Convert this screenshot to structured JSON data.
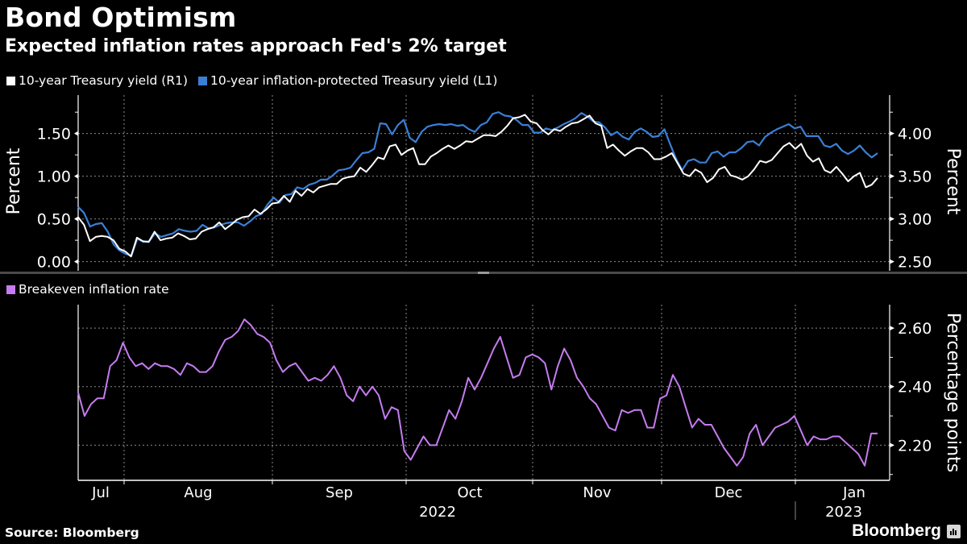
{
  "header": {
    "title": "Bond Optimism",
    "subtitle": "Expected inflation rates approach Fed's 2% target"
  },
  "footer": {
    "source": "Source: Bloomberg",
    "brand": "Bloomberg"
  },
  "colors": {
    "background": "#000000",
    "treasury": "#ffffff",
    "tips": "#3a7fd5",
    "breakeven": "#c57cf0",
    "grid": "#8a8a8a"
  },
  "chart_data": [
    {
      "type": "line",
      "panel": "top",
      "legend": [
        {
          "name": "10-year Treasury yield (R1)",
          "color": "#ffffff"
        },
        {
          "name": "10-year inflation-protected Treasury yield (L1)",
          "color": "#3a7fd5"
        }
      ],
      "left_axis": {
        "label": "Percent",
        "ticks": [
          "0.00",
          "0.50",
          "1.00",
          "1.50"
        ],
        "ylim": [
          -0.07,
          1.95
        ]
      },
      "right_axis": {
        "label": "Percent",
        "ticks": [
          "2.50",
          "3.00",
          "3.50",
          "4.00"
        ],
        "ylim": [
          2.43,
          4.45
        ]
      },
      "x_labels": [
        "Jul",
        "Aug",
        "Sep",
        "Oct",
        "Nov",
        "Dec",
        "Jan"
      ],
      "year_labels": [
        "2022",
        "2023"
      ],
      "grid": true,
      "series": [
        {
          "name": "10-year Treasury yield (R1)",
          "axis": "right",
          "values": [
            3.02,
            2.93,
            2.74,
            2.79,
            2.8,
            2.79,
            2.75,
            2.65,
            2.62,
            2.56,
            2.78,
            2.74,
            2.73,
            2.85,
            2.75,
            2.77,
            2.78,
            2.83,
            2.8,
            2.76,
            2.77,
            2.85,
            2.88,
            2.9,
            2.96,
            2.88,
            2.93,
            2.99,
            3.02,
            3.03,
            3.11,
            3.06,
            3.11,
            3.18,
            3.19,
            3.27,
            3.2,
            3.33,
            3.27,
            3.35,
            3.31,
            3.37,
            3.39,
            3.41,
            3.41,
            3.47,
            3.49,
            3.5,
            3.6,
            3.55,
            3.63,
            3.72,
            3.7,
            3.85,
            3.87,
            3.75,
            3.8,
            3.83,
            3.64,
            3.64,
            3.73,
            3.77,
            3.82,
            3.86,
            3.82,
            3.86,
            3.91,
            3.9,
            3.94,
            3.98,
            3.98,
            3.97,
            4.02,
            4.09,
            4.18,
            4.19,
            4.22,
            4.14,
            4.12,
            4.04,
            3.99,
            4.05,
            4.03,
            4.08,
            4.12,
            4.13,
            4.17,
            4.21,
            4.12,
            4.09,
            3.83,
            3.87,
            3.8,
            3.74,
            3.79,
            3.83,
            3.83,
            3.78,
            3.7,
            3.7,
            3.73,
            3.77,
            3.65,
            3.53,
            3.5,
            3.58,
            3.54,
            3.43,
            3.48,
            3.58,
            3.61,
            3.51,
            3.49,
            3.46,
            3.5,
            3.58,
            3.68,
            3.66,
            3.69,
            3.77,
            3.85,
            3.89,
            3.82,
            3.88,
            3.74,
            3.67,
            3.71,
            3.57,
            3.54,
            3.61,
            3.53,
            3.44,
            3.5,
            3.54,
            3.37,
            3.4,
            3.48
          ]
        },
        {
          "name": "10-year inflation-protected Treasury yield (L1)",
          "axis": "left",
          "values": [
            0.64,
            0.57,
            0.41,
            0.44,
            0.45,
            0.35,
            0.2,
            0.13,
            0.09,
            0.07,
            0.27,
            0.23,
            0.24,
            0.33,
            0.29,
            0.31,
            0.33,
            0.38,
            0.36,
            0.35,
            0.36,
            0.43,
            0.39,
            0.4,
            0.43,
            0.45,
            0.46,
            0.46,
            0.42,
            0.47,
            0.53,
            0.56,
            0.67,
            0.75,
            0.69,
            0.78,
            0.79,
            0.87,
            0.85,
            0.9,
            0.92,
            0.96,
            0.96,
            1.01,
            1.07,
            1.08,
            1.1,
            1.19,
            1.27,
            1.28,
            1.32,
            1.62,
            1.61,
            1.49,
            1.6,
            1.66,
            1.45,
            1.4,
            1.52,
            1.58,
            1.6,
            1.61,
            1.6,
            1.61,
            1.59,
            1.6,
            1.55,
            1.52,
            1.6,
            1.63,
            1.73,
            1.75,
            1.71,
            1.7,
            1.66,
            1.6,
            1.6,
            1.51,
            1.51,
            1.56,
            1.54,
            1.57,
            1.61,
            1.64,
            1.68,
            1.74,
            1.7,
            1.64,
            1.63,
            1.57,
            1.48,
            1.52,
            1.46,
            1.43,
            1.52,
            1.56,
            1.52,
            1.46,
            1.47,
            1.55,
            1.37,
            1.2,
            1.07,
            1.18,
            1.2,
            1.16,
            1.16,
            1.27,
            1.29,
            1.23,
            1.28,
            1.28,
            1.33,
            1.4,
            1.41,
            1.36,
            1.46,
            1.51,
            1.55,
            1.58,
            1.61,
            1.56,
            1.58,
            1.47,
            1.47,
            1.47,
            1.36,
            1.34,
            1.38,
            1.3,
            1.26,
            1.3,
            1.36,
            1.28,
            1.22,
            1.27
          ]
        }
      ]
    },
    {
      "type": "line",
      "panel": "bottom",
      "legend": [
        {
          "name": "Breakeven inflation rate",
          "color": "#c57cf0"
        }
      ],
      "right_axis": {
        "label": "Percentage points",
        "ticks": [
          "2.20",
          "2.40",
          "2.60"
        ],
        "ylim": [
          2.08,
          2.68
        ]
      },
      "x_labels": [
        "Jul",
        "Aug",
        "Sep",
        "Oct",
        "Nov",
        "Dec",
        "Jan"
      ],
      "year_labels": [
        "2022",
        "2023"
      ],
      "grid": true,
      "series": [
        {
          "name": "Breakeven inflation rate",
          "values": [
            2.38,
            2.3,
            2.34,
            2.36,
            2.36,
            2.47,
            2.49,
            2.55,
            2.5,
            2.47,
            2.48,
            2.46,
            2.48,
            2.47,
            2.47,
            2.46,
            2.44,
            2.48,
            2.47,
            2.45,
            2.45,
            2.47,
            2.52,
            2.56,
            2.57,
            2.59,
            2.63,
            2.61,
            2.58,
            2.57,
            2.55,
            2.49,
            2.45,
            2.47,
            2.48,
            2.45,
            2.42,
            2.43,
            2.42,
            2.44,
            2.47,
            2.43,
            2.37,
            2.35,
            2.4,
            2.37,
            2.4,
            2.37,
            2.29,
            2.33,
            2.32,
            2.18,
            2.15,
            2.19,
            2.23,
            2.2,
            2.2,
            2.26,
            2.32,
            2.29,
            2.35,
            2.43,
            2.39,
            2.43,
            2.48,
            2.53,
            2.57,
            2.5,
            2.43,
            2.44,
            2.5,
            2.51,
            2.5,
            2.48,
            2.39,
            2.47,
            2.53,
            2.49,
            2.43,
            2.4,
            2.36,
            2.34,
            2.3,
            2.26,
            2.25,
            2.32,
            2.31,
            2.32,
            2.32,
            2.26,
            2.26,
            2.36,
            2.37,
            2.44,
            2.4,
            2.33,
            2.26,
            2.29,
            2.27,
            2.27,
            2.23,
            2.19,
            2.16,
            2.13,
            2.16,
            2.24,
            2.27,
            2.2,
            2.23,
            2.26,
            2.27,
            2.28,
            2.3,
            2.25,
            2.2,
            2.23,
            2.22,
            2.22,
            2.23,
            2.23,
            2.21,
            2.19,
            2.17,
            2.13,
            2.24,
            2.24
          ]
        }
      ]
    }
  ]
}
